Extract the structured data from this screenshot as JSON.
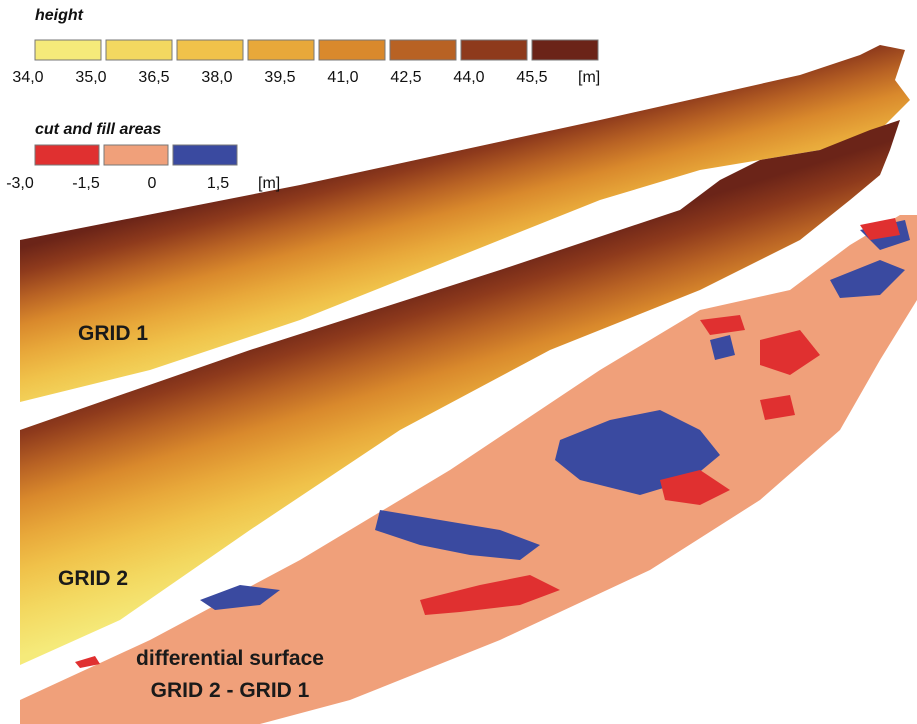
{
  "legends": {
    "height": {
      "title": "height",
      "ticks": [
        "34,0",
        "35,0",
        "36,5",
        "38,0",
        "39,5",
        "41,0",
        "42,5",
        "44,0",
        "45,5"
      ],
      "unit": "[m]"
    },
    "cut_fill": {
      "title": "cut and fill areas",
      "ticks": [
        "-3,0",
        "-1,5",
        "0",
        "1,5"
      ],
      "unit": "[m]"
    }
  },
  "labels": {
    "grid1": "GRID 1",
    "grid2": "GRID 2",
    "diff_line1": "differential surface",
    "diff_line2": "GRID 2 - GRID 1"
  }
}
